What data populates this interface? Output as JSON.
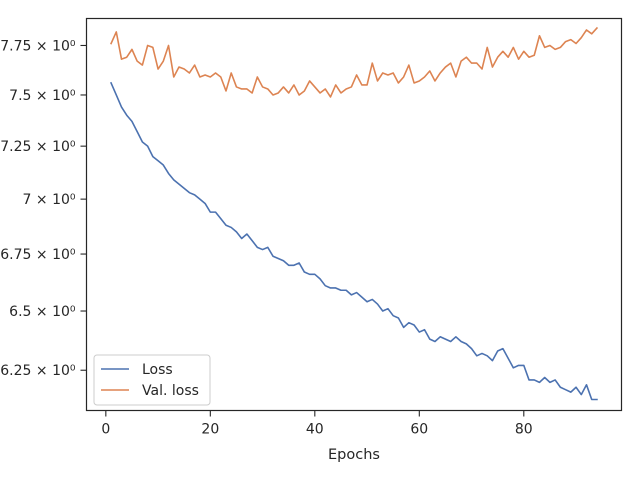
{
  "chart_data": {
    "type": "line",
    "title": "",
    "xlabel": "Epochs",
    "ylabel": "",
    "yscale": "log",
    "xlim": [
      -3.7,
      98.7
    ],
    "ylim": [
      6.0855,
      7.8897
    ],
    "grid": false,
    "legend_position": "lower-left",
    "x_ticks": [
      {
        "value": 0,
        "label": "0"
      },
      {
        "value": 20,
        "label": "20"
      },
      {
        "value": 40,
        "label": "40"
      },
      {
        "value": 60,
        "label": "60"
      },
      {
        "value": 80,
        "label": "80"
      }
    ],
    "y_ticks": [
      {
        "value": 6.25,
        "label": "6.25 × 10⁰"
      },
      {
        "value": 6.5,
        "label": "6.5 × 10⁰"
      },
      {
        "value": 6.75,
        "label": "6.75 × 10⁰"
      },
      {
        "value": 7.0,
        "label": "7 × 10⁰"
      },
      {
        "value": 7.25,
        "label": "7.25 × 10⁰"
      },
      {
        "value": 7.5,
        "label": "7.5 × 10⁰"
      },
      {
        "value": 7.75,
        "label": "7.75 × 10⁰"
      }
    ],
    "x": [
      1,
      2,
      3,
      4,
      5,
      6,
      7,
      8,
      9,
      10,
      11,
      12,
      13,
      14,
      15,
      16,
      17,
      18,
      19,
      20,
      21,
      22,
      23,
      24,
      25,
      26,
      27,
      28,
      29,
      30,
      31,
      32,
      33,
      34,
      35,
      36,
      37,
      38,
      39,
      40,
      41,
      42,
      43,
      44,
      45,
      46,
      47,
      48,
      49,
      50,
      51,
      52,
      53,
      54,
      55,
      56,
      57,
      58,
      59,
      60,
      61,
      62,
      63,
      64,
      65,
      66,
      67,
      68,
      69,
      70,
      71,
      72,
      73,
      74,
      75,
      76,
      77,
      78,
      79,
      80,
      81,
      82,
      83,
      84,
      85,
      86,
      87,
      88,
      89,
      90,
      91,
      92,
      93,
      94
    ],
    "series": [
      {
        "name": "Loss",
        "color": "#4c72b0",
        "values": [
          7.56,
          7.5,
          7.44,
          7.4,
          7.37,
          7.32,
          7.27,
          7.25,
          7.2,
          7.18,
          7.16,
          7.12,
          7.09,
          7.07,
          7.05,
          7.03,
          7.02,
          7.0,
          6.98,
          6.94,
          6.94,
          6.91,
          6.88,
          6.87,
          6.85,
          6.82,
          6.84,
          6.81,
          6.78,
          6.77,
          6.78,
          6.74,
          6.73,
          6.72,
          6.7,
          6.7,
          6.71,
          6.67,
          6.66,
          6.66,
          6.64,
          6.61,
          6.6,
          6.6,
          6.59,
          6.59,
          6.57,
          6.58,
          6.56,
          6.54,
          6.55,
          6.53,
          6.5,
          6.51,
          6.48,
          6.47,
          6.43,
          6.45,
          6.44,
          6.41,
          6.42,
          6.38,
          6.37,
          6.39,
          6.38,
          6.37,
          6.39,
          6.37,
          6.36,
          6.34,
          6.31,
          6.32,
          6.31,
          6.29,
          6.33,
          6.34,
          6.3,
          6.26,
          6.27,
          6.27,
          6.21,
          6.21,
          6.2,
          6.22,
          6.2,
          6.21,
          6.18,
          6.17,
          6.16,
          6.18,
          6.15,
          6.19,
          6.13,
          6.13
        ]
      },
      {
        "name": "Val. loss",
        "color": "#dd8452",
        "values": [
          7.76,
          7.82,
          7.68,
          7.69,
          7.73,
          7.67,
          7.65,
          7.75,
          7.74,
          7.63,
          7.67,
          7.75,
          7.59,
          7.64,
          7.63,
          7.61,
          7.65,
          7.59,
          7.6,
          7.59,
          7.61,
          7.59,
          7.52,
          7.61,
          7.54,
          7.53,
          7.53,
          7.51,
          7.59,
          7.54,
          7.53,
          7.5,
          7.51,
          7.54,
          7.51,
          7.55,
          7.5,
          7.52,
          7.57,
          7.54,
          7.51,
          7.53,
          7.49,
          7.55,
          7.51,
          7.53,
          7.54,
          7.6,
          7.55,
          7.55,
          7.66,
          7.57,
          7.61,
          7.6,
          7.61,
          7.56,
          7.59,
          7.65,
          7.56,
          7.57,
          7.59,
          7.62,
          7.57,
          7.61,
          7.64,
          7.66,
          7.59,
          7.67,
          7.69,
          7.66,
          7.66,
          7.63,
          7.74,
          7.64,
          7.69,
          7.72,
          7.69,
          7.74,
          7.68,
          7.72,
          7.69,
          7.7,
          7.8,
          7.74,
          7.75,
          7.73,
          7.74,
          7.77,
          7.78,
          7.76,
          7.79,
          7.83,
          7.81,
          7.84
        ]
      }
    ]
  }
}
